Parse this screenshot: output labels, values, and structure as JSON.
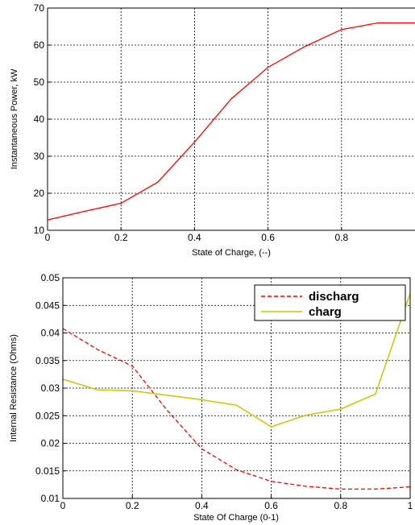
{
  "chart_data": [
    {
      "type": "line",
      "xlabel": "State of Charge, (--)",
      "ylabel": "Instantaneous Power, kW",
      "xlim": [
        0,
        1
      ],
      "ylim": [
        10,
        70
      ],
      "xticks": [
        "0",
        "0.2",
        "0.4",
        "0.6",
        "0.8"
      ],
      "yticks": [
        "10",
        "20",
        "30",
        "40",
        "50",
        "60",
        "70"
      ],
      "grid": true,
      "series": [
        {
          "color": "#ff0000",
          "style": "solid",
          "x": [
            0,
            0.1,
            0.2,
            0.3,
            0.4,
            0.5,
            0.6,
            0.7,
            0.8,
            0.9,
            1.0
          ],
          "y": [
            12.8,
            15.1,
            17.3,
            23.0,
            33.8,
            45.5,
            54.0,
            59.6,
            64.2,
            66.0,
            66.0
          ]
        }
      ]
    },
    {
      "type": "line",
      "xlabel": "State Of Charge (0-1)",
      "ylabel": "Internal Resistance (Ohms)",
      "xlim": [
        0,
        1
      ],
      "ylim": [
        0.01,
        0.05
      ],
      "xticks": [
        "0",
        "0.2",
        "0.4",
        "0.6",
        "0.8",
        "1"
      ],
      "yticks": [
        "0.01",
        "0.015",
        "0.02",
        "0.025",
        "0.03",
        "0.035",
        "0.04",
        "0.045",
        "0.05"
      ],
      "grid": true,
      "legend": "top-right",
      "series": [
        {
          "name": "discharg",
          "color": "#ff0000",
          "style": "dashed",
          "x": [
            0,
            0.1,
            0.2,
            0.3,
            0.4,
            0.5,
            0.6,
            0.7,
            0.8,
            0.9,
            1.0
          ],
          "y": [
            0.0408,
            0.037,
            0.034,
            0.026,
            0.019,
            0.0152,
            0.0131,
            0.0122,
            0.0117,
            0.0117,
            0.0121
          ]
        },
        {
          "name": "charg",
          "color": "#c8c800",
          "style": "solid",
          "x": [
            0,
            0.1,
            0.2,
            0.3,
            0.4,
            0.5,
            0.6,
            0.7,
            0.8,
            0.9,
            1.0
          ],
          "y": [
            0.0316,
            0.0297,
            0.0295,
            0.0287,
            0.0279,
            0.0269,
            0.023,
            0.0251,
            0.0262,
            0.0289,
            0.0472
          ]
        }
      ]
    }
  ]
}
